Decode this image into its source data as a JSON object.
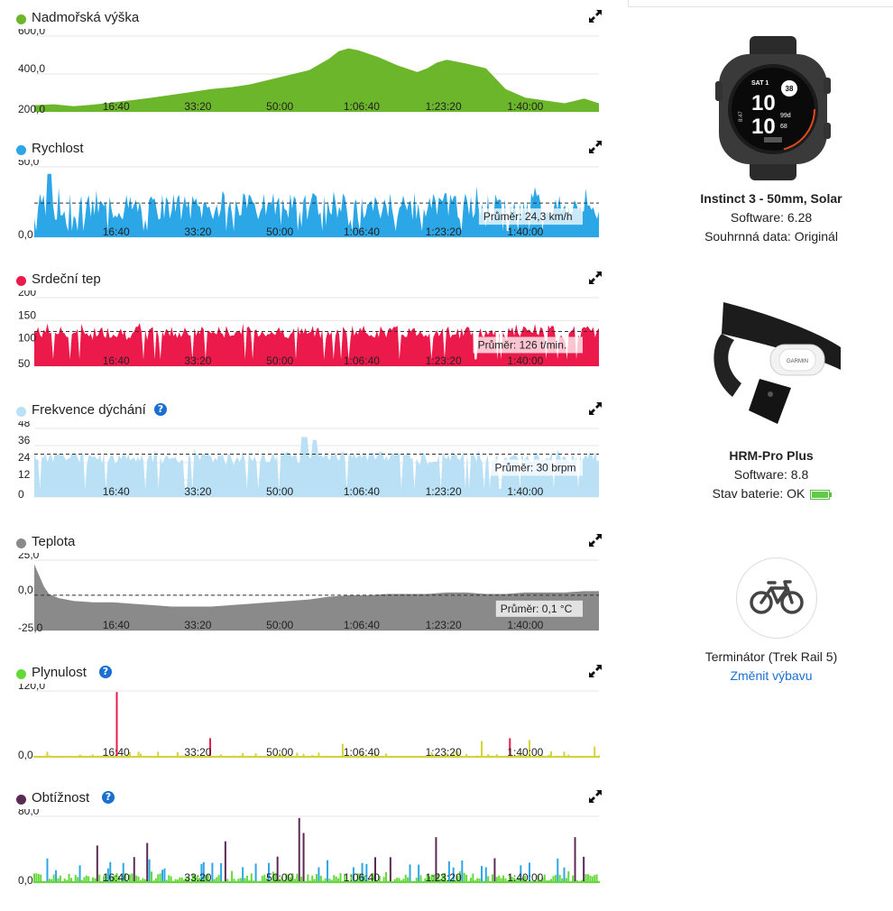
{
  "x_ticks": [
    "16:40",
    "33:20",
    "50:00",
    "1:06:40",
    "1:23:20",
    "1:40:00"
  ],
  "charts": [
    {
      "id": "altitude",
      "title": "Nadmořská výška",
      "color": "#6cb62b",
      "help": false,
      "chart_data": {
        "type": "area",
        "ylim": [
          200,
          600
        ],
        "y_labels": [
          "600,0",
          "400,0",
          "200,0"
        ],
        "y_label_values": [
          600,
          400,
          200
        ],
        "grid": [
          600,
          400,
          200
        ],
        "x_minutes_max": 115,
        "x": [
          0,
          4,
          8,
          12,
          16,
          20,
          24,
          28,
          32,
          36,
          40,
          44,
          48,
          52,
          56,
          60,
          62,
          64,
          66,
          70,
          74,
          78,
          80,
          82,
          84,
          88,
          92,
          96,
          100,
          104,
          108,
          112,
          115
        ],
        "y": [
          235,
          240,
          230,
          238,
          250,
          262,
          275,
          290,
          305,
          320,
          330,
          345,
          370,
          395,
          420,
          480,
          520,
          535,
          525,
          490,
          445,
          410,
          430,
          460,
          475,
          455,
          430,
          320,
          275,
          260,
          245,
          270,
          245
        ],
        "mean": null,
        "mean_label": ""
      }
    },
    {
      "id": "speed",
      "title": "Rychlost",
      "color": "#2ba6e6",
      "help": false,
      "chart_data": {
        "type": "area",
        "ylim": [
          0,
          50
        ],
        "y_labels": [
          "50,0",
          "0,0"
        ],
        "y_label_values": [
          50,
          0
        ],
        "grid": [
          50,
          0
        ],
        "x_minutes_max": 115,
        "seed": 3,
        "base": 22,
        "amp": 10,
        "spike": [
          [
            3,
            45
          ]
        ],
        "mean": 24.3,
        "mean_label": "Průměr: 24,3 km/h"
      }
    },
    {
      "id": "heartrate",
      "title": "Srdeční tep",
      "color": "#ec1a4a",
      "help": false,
      "chart_data": {
        "type": "area",
        "ylim": [
          50,
          200
        ],
        "y_labels": [
          "200",
          "150",
          "100",
          "50"
        ],
        "y_label_values": [
          200,
          150,
          100,
          50
        ],
        "grid": [
          200,
          150,
          100,
          50
        ],
        "x_minutes_max": 115,
        "seed": 7,
        "base": 125,
        "amp": 14,
        "mean": 126,
        "mean_label": "Průměr: 126 t/min."
      }
    },
    {
      "id": "breathing",
      "title": "Frekvence dýchání",
      "color": "#b9e0f5",
      "help": true,
      "chart_data": {
        "type": "area",
        "ylim": [
          0,
          48
        ],
        "y_labels": [
          "48",
          "36",
          "24",
          "12",
          "0"
        ],
        "y_label_values": [
          48,
          36,
          24,
          12,
          0
        ],
        "grid": [
          48,
          36,
          24,
          12,
          0
        ],
        "x_minutes_max": 115,
        "seed": 11,
        "base": 28,
        "amp": 4,
        "spike": [
          [
            55,
            42
          ],
          [
            57,
            40
          ]
        ],
        "mean": 30,
        "mean_label": "Průměr: 30 brpm"
      }
    },
    {
      "id": "temperature",
      "title": "Teplota",
      "color": "#8a8a8a",
      "help": false,
      "chart_data": {
        "type": "area",
        "ylim": [
          -25,
          25
        ],
        "y_labels": [
          "25,0",
          "0,0",
          "-25,0"
        ],
        "y_label_values": [
          25,
          0,
          -25
        ],
        "grid": [
          25,
          0,
          -25
        ],
        "x_minutes_max": 115,
        "floor": -25,
        "x": [
          0,
          1,
          2,
          3,
          5,
          8,
          12,
          16,
          20,
          24,
          28,
          32,
          36,
          40,
          44,
          48,
          52,
          56,
          60,
          64,
          68,
          72,
          76,
          80,
          84,
          88,
          92,
          96,
          100,
          104,
          108,
          112,
          115
        ],
        "y": [
          22,
          14,
          6,
          1,
          -2,
          -4,
          -5,
          -5,
          -6,
          -7,
          -8,
          -8,
          -8,
          -7,
          -6,
          -5,
          -4,
          -3,
          -1,
          0,
          0,
          1,
          1,
          1,
          2,
          2,
          1,
          1,
          2,
          2,
          2,
          3,
          3
        ],
        "mean": 0.1,
        "mean_label": "Průměr: 0,1 °C"
      }
    },
    {
      "id": "flow",
      "title": "Plynulost",
      "color": "#66d93a",
      "help": true,
      "chart_data": {
        "type": "spike",
        "ylim": [
          0,
          120
        ],
        "y_labels": [
          "120,0",
          "0,0"
        ],
        "y_label_values": [
          120,
          0
        ],
        "grid": [
          120,
          0
        ],
        "x_minutes_max": 115,
        "seed": 19,
        "base": 4,
        "amp": 10,
        "spikes": [
          [
            17,
            118
          ],
          [
            36,
            35
          ],
          [
            63,
            25
          ],
          [
            91,
            30
          ],
          [
            97,
            35
          ],
          [
            101,
            32
          ],
          [
            114,
            20
          ]
        ],
        "colors": [
          "#d4d43a",
          "#ec1a4a"
        ],
        "mean": null,
        "mean_label": ""
      }
    },
    {
      "id": "difficulty",
      "title": "Obtížnost",
      "color": "#5a2a55",
      "help": true,
      "chart_data": {
        "type": "spike",
        "ylim": [
          0,
          80
        ],
        "y_labels": [
          "80,0",
          "0,0"
        ],
        "y_label_values": [
          80,
          0
        ],
        "grid": [
          80,
          0
        ],
        "x_minutes_max": 115,
        "seed": 29,
        "base": 12,
        "amp": 25,
        "spikes": [
          [
            54,
            78
          ],
          [
            55,
            60
          ],
          [
            82,
            55
          ],
          [
            110,
            55
          ],
          [
            13,
            45
          ],
          [
            23,
            48
          ],
          [
            39,
            50
          ]
        ],
        "colors": [
          "#66d93a",
          "#2ba6e6",
          "#5a2a55"
        ],
        "mean": null,
        "mean_label": ""
      }
    }
  ],
  "devices": [
    {
      "name": "Instinct 3 - 50mm, Solar",
      "lines": [
        "Software: 6.28",
        "Souhrnná data: Originál"
      ],
      "watch": {
        "day": "SAT 1",
        "time_h": "10",
        "time_m": "10",
        "ring": "38",
        "stat1": "99d",
        "stat2": "68",
        "small": "8:47",
        "brand": "GARMIN"
      }
    },
    {
      "name": "HRM-Pro Plus",
      "lines": [
        "Software: 8.8"
      ],
      "battery_label": "Stav baterie: OK",
      "battery_level": 0.9,
      "strap_brand": "GARMIN"
    },
    {
      "name": "Terminátor (Trek Rail 5)",
      "link": "Změnit výbavu"
    }
  ]
}
